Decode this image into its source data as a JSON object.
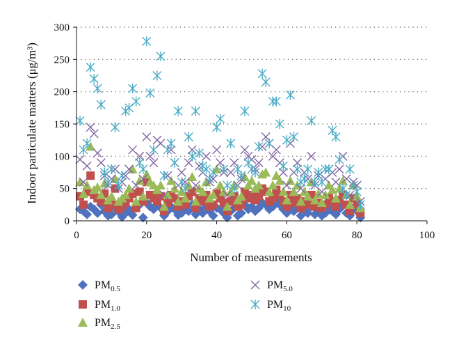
{
  "chart_data": {
    "type": "scatter",
    "xlabel": "Number of measurements",
    "ylabel": "Indoor particulate matters (μg/m³)",
    "xlim": [
      0,
      100
    ],
    "ylim": [
      0,
      300
    ],
    "xticks": [
      0,
      20,
      40,
      60,
      80,
      100
    ],
    "yticks": [
      0,
      50,
      100,
      150,
      200,
      250,
      300
    ],
    "grid": "horizontal dotted",
    "legend_position": "bottom",
    "series": [
      {
        "name": "PM0.5",
        "name_base": "PM",
        "name_sub": "0.5",
        "marker": "diamond",
        "color": "#4f71be",
        "x": [
          1,
          2,
          3,
          4,
          5,
          6,
          7,
          8,
          9,
          10,
          11,
          12,
          13,
          14,
          15,
          16,
          17,
          18,
          19,
          20,
          21,
          22,
          23,
          24,
          25,
          26,
          27,
          28,
          29,
          30,
          31,
          32,
          33,
          34,
          35,
          36,
          37,
          38,
          39,
          40,
          41,
          42,
          43,
          44,
          45,
          46,
          47,
          48,
          49,
          50,
          51,
          52,
          53,
          54,
          55,
          56,
          57,
          58,
          59,
          60,
          61,
          62,
          63,
          64,
          65,
          66,
          67,
          68,
          69,
          70,
          71,
          72,
          73,
          74,
          75,
          76,
          77,
          78,
          79,
          80,
          81
        ],
        "y": [
          18,
          15,
          10,
          22,
          18,
          12,
          25,
          15,
          8,
          10,
          20,
          14,
          6,
          12,
          18,
          9,
          20,
          25,
          5,
          28,
          22,
          18,
          25,
          20,
          8,
          15,
          22,
          18,
          9,
          12,
          20,
          15,
          25,
          10,
          18,
          12,
          22,
          15,
          8,
          20,
          18,
          12,
          5,
          15,
          20,
          8,
          12,
          25,
          18,
          22,
          15,
          20,
          28,
          25,
          18,
          22,
          30,
          25,
          18,
          12,
          22,
          15,
          20,
          8,
          18,
          12,
          22,
          10,
          15,
          8,
          12,
          20,
          15,
          10,
          18,
          25,
          12,
          8,
          20,
          15,
          5
        ]
      },
      {
        "name": "PM1.0",
        "name_base": "PM",
        "name_sub": "1.0",
        "marker": "square",
        "color": "#c0504d",
        "x": [
          1,
          2,
          3,
          4,
          5,
          6,
          7,
          8,
          9,
          10,
          11,
          12,
          13,
          14,
          15,
          16,
          17,
          18,
          19,
          20,
          21,
          22,
          23,
          24,
          25,
          26,
          27,
          28,
          29,
          30,
          31,
          32,
          33,
          34,
          35,
          36,
          37,
          38,
          39,
          40,
          41,
          42,
          43,
          44,
          45,
          46,
          47,
          48,
          49,
          50,
          51,
          52,
          53,
          54,
          55,
          56,
          57,
          58,
          59,
          60,
          61,
          62,
          63,
          64,
          65,
          66,
          67,
          68,
          69,
          70,
          71,
          72,
          73,
          74,
          75,
          76,
          77,
          78,
          79,
          80,
          81
        ],
        "y": [
          38,
          25,
          45,
          70,
          40,
          35,
          30,
          42,
          20,
          25,
          50,
          18,
          22,
          28,
          35,
          42,
          20,
          45,
          30,
          60,
          40,
          35,
          30,
          38,
          15,
          28,
          40,
          35,
          22,
          30,
          25,
          38,
          45,
          20,
          35,
          30,
          40,
          22,
          25,
          42,
          35,
          28,
          15,
          30,
          38,
          22,
          25,
          45,
          35,
          40,
          32,
          38,
          50,
          45,
          30,
          35,
          48,
          40,
          30,
          22,
          40,
          28,
          35,
          20,
          30,
          25,
          40,
          22,
          28,
          20,
          25,
          35,
          30,
          22,
          32,
          40,
          25,
          15,
          35,
          25,
          12
        ]
      },
      {
        "name": "PM2.5",
        "name_base": "PM",
        "name_sub": "2.5",
        "marker": "triangle",
        "color": "#9bbb59",
        "x": [
          1,
          2,
          3,
          4,
          5,
          6,
          7,
          8,
          9,
          10,
          11,
          12,
          13,
          14,
          15,
          16,
          17,
          18,
          19,
          20,
          21,
          22,
          23,
          24,
          25,
          26,
          27,
          28,
          29,
          30,
          31,
          32,
          33,
          34,
          35,
          36,
          37,
          38,
          39,
          40,
          41,
          42,
          43,
          44,
          45,
          46,
          47,
          48,
          49,
          50,
          51,
          52,
          53,
          54,
          55,
          56,
          57,
          58,
          59,
          60,
          61,
          62,
          63,
          64,
          65,
          66,
          67,
          68,
          69,
          70,
          71,
          72,
          73,
          74,
          75,
          76,
          77,
          78,
          79,
          80,
          81
        ],
        "y": [
          60,
          42,
          55,
          115,
          48,
          52,
          40,
          58,
          32,
          38,
          65,
          30,
          35,
          40,
          50,
          80,
          30,
          62,
          38,
          72,
          60,
          55,
          48,
          55,
          22,
          40,
          62,
          50,
          30,
          45,
          35,
          55,
          68,
          30,
          50,
          45,
          60,
          35,
          40,
          80,
          55,
          45,
          22,
          45,
          55,
          32,
          38,
          68,
          55,
          62,
          50,
          55,
          72,
          75,
          45,
          55,
          70,
          62,
          45,
          32,
          62,
          45,
          55,
          30,
          45,
          38,
          60,
          32,
          42,
          28,
          40,
          55,
          48,
          35,
          50,
          62,
          40,
          25,
          55,
          38,
          20
        ]
      },
      {
        "name": "PM5.0",
        "name_base": "PM",
        "name_sub": "5.0",
        "marker": "x",
        "color": "#8064a2",
        "x": [
          1,
          2,
          3,
          4,
          5,
          6,
          7,
          8,
          9,
          10,
          11,
          12,
          13,
          14,
          15,
          16,
          17,
          18,
          19,
          20,
          21,
          22,
          23,
          24,
          25,
          26,
          27,
          28,
          29,
          30,
          31,
          32,
          33,
          34,
          35,
          36,
          37,
          38,
          39,
          40,
          41,
          42,
          43,
          44,
          45,
          46,
          47,
          48,
          49,
          50,
          51,
          52,
          53,
          54,
          55,
          56,
          57,
          58,
          59,
          60,
          61,
          62,
          63,
          64,
          65,
          66,
          67,
          68,
          69,
          70,
          71,
          72,
          73,
          74,
          75,
          76,
          77,
          78,
          79,
          80,
          81
        ],
        "y": [
          95,
          60,
          85,
          145,
          135,
          105,
          90,
          70,
          55,
          65,
          80,
          50,
          60,
          70,
          80,
          110,
          55,
          100,
          65,
          130,
          100,
          90,
          125,
          120,
          40,
          70,
          110,
          90,
          55,
          75,
          60,
          90,
          110,
          55,
          85,
          75,
          100,
          60,
          65,
          110,
          90,
          75,
          40,
          75,
          90,
          55,
          65,
          110,
          100,
          95,
          80,
          90,
          115,
          130,
          120,
          100,
          110,
          90,
          75,
          55,
          120,
          75,
          90,
          50,
          75,
          65,
          100,
          55,
          70,
          45,
          65,
          80,
          75,
          60,
          80,
          100,
          65,
          40,
          60,
          55,
          30
        ]
      },
      {
        "name": "PM10",
        "name_base": "PM",
        "name_sub": "10",
        "marker": "asterisk",
        "color": "#4bacc6",
        "x": [
          1,
          2,
          3,
          4,
          5,
          6,
          7,
          8,
          9,
          10,
          11,
          12,
          13,
          14,
          15,
          16,
          17,
          18,
          19,
          20,
          21,
          22,
          23,
          24,
          25,
          26,
          27,
          28,
          29,
          30,
          31,
          32,
          33,
          34,
          35,
          36,
          37,
          38,
          39,
          40,
          41,
          42,
          43,
          44,
          45,
          46,
          47,
          48,
          49,
          50,
          51,
          52,
          53,
          54,
          55,
          56,
          57,
          58,
          59,
          60,
          61,
          62,
          63,
          64,
          65,
          66,
          67,
          68,
          69,
          70,
          71,
          72,
          73,
          74,
          75,
          76,
          77,
          78,
          79,
          80,
          81
        ],
        "y": [
          155,
          110,
          120,
          238,
          220,
          205,
          180,
          75,
          60,
          80,
          145,
          55,
          70,
          170,
          175,
          205,
          185,
          90,
          80,
          278,
          198,
          110,
          225,
          255,
          70,
          110,
          120,
          90,
          170,
          60,
          50,
          130,
          100,
          170,
          105,
          85,
          80,
          65,
          75,
          145,
          158,
          80,
          55,
          120,
          50,
          80,
          70,
          170,
          90,
          80,
          75,
          115,
          228,
          215,
          120,
          185,
          185,
          150,
          85,
          125,
          195,
          130,
          80,
          60,
          65,
          80,
          155,
          60,
          75,
          60,
          80,
          80,
          140,
          130,
          95,
          50,
          40,
          80,
          55,
          45,
          25
        ]
      }
    ]
  }
}
